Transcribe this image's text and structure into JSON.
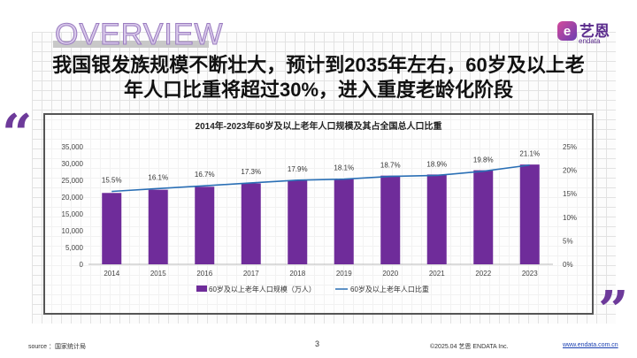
{
  "header": {
    "overview": "OVERVIEW",
    "logo_cn": "艺恩",
    "logo_en": "endata",
    "logo_mark": "e"
  },
  "title_lines": [
    "我国银发族规模不断壮大，预计到2035年左右，60岁及以上老",
    "年人口比重将超过30%，进入重度老龄化阶段"
  ],
  "quotes": {
    "open": "“",
    "close": "”"
  },
  "colors": {
    "bar": "#6f2c9a",
    "line": "#2a6fb5",
    "accent": "#6d3a9a"
  },
  "chart_data": {
    "type": "bar+line",
    "title": "2014年-2023年60岁及以上老年人口规模及其占全国总人口比重",
    "categories": [
      "2014",
      "2015",
      "2016",
      "2017",
      "2018",
      "2019",
      "2020",
      "2021",
      "2022",
      "2023"
    ],
    "series": [
      {
        "name": "60岁及以上老年人口规模（万人）",
        "type": "bar",
        "axis": "left",
        "values": [
          21242,
          22200,
          23086,
          24090,
          24949,
          25388,
          26402,
          26736,
          28004,
          29697
        ]
      },
      {
        "name": "60岁及以上老年人口比重",
        "type": "line",
        "axis": "right",
        "values": [
          15.5,
          16.1,
          16.7,
          17.3,
          17.9,
          18.1,
          18.7,
          18.9,
          19.8,
          21.1
        ],
        "labels": [
          "15.5%",
          "16.1%",
          "16.7%",
          "17.3%",
          "17.9%",
          "18.1%",
          "18.7%",
          "18.9%",
          "19.8%",
          "21.1%"
        ]
      }
    ],
    "ylim_left": [
      0,
      35000
    ],
    "yticks_left": [
      "0",
      "5,000",
      "10,000",
      "15,000",
      "20,000",
      "25,000",
      "30,000",
      "35,000"
    ],
    "ylim_right": [
      0,
      25
    ],
    "yticks_right": [
      "0%",
      "5%",
      "10%",
      "15%",
      "20%",
      "25%"
    ],
    "legend": "bottom",
    "grid": false
  },
  "footer": {
    "source": "source ：国家统计局",
    "page": "3",
    "copyright": "©2025.04 艺恩 ENDATA Inc.",
    "url": "www.endata.com.cn"
  }
}
